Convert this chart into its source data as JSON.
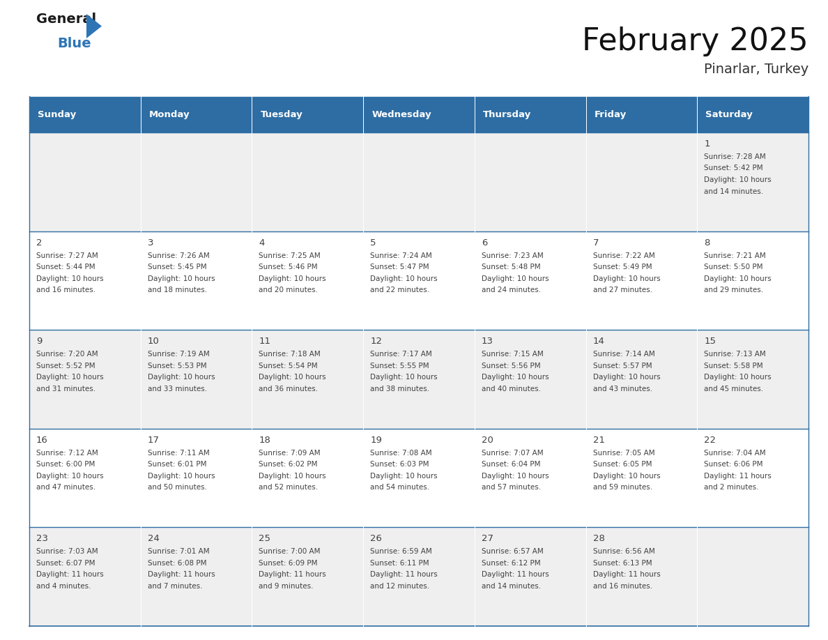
{
  "title": "February 2025",
  "subtitle": "Pinarlar, Turkey",
  "header_bg": "#2E6DA4",
  "header_text_color": "#FFFFFF",
  "cell_bg_light": "#EFEFEF",
  "cell_bg_white": "#FFFFFF",
  "border_color": "#2E6DA4",
  "text_color": "#404040",
  "day_headers": [
    "Sunday",
    "Monday",
    "Tuesday",
    "Wednesday",
    "Thursday",
    "Friday",
    "Saturday"
  ],
  "logo_dark_color": "#1a1a1a",
  "logo_blue_color": "#2E75B6",
  "calendar_data": [
    [
      null,
      null,
      null,
      null,
      null,
      null,
      {
        "day": "1",
        "sunrise": "7:28 AM",
        "sunset": "5:42 PM",
        "daylight_line1": "10 hours",
        "daylight_line2": "and 14 minutes."
      }
    ],
    [
      {
        "day": "2",
        "sunrise": "7:27 AM",
        "sunset": "5:44 PM",
        "daylight_line1": "10 hours",
        "daylight_line2": "and 16 minutes."
      },
      {
        "day": "3",
        "sunrise": "7:26 AM",
        "sunset": "5:45 PM",
        "daylight_line1": "10 hours",
        "daylight_line2": "and 18 minutes."
      },
      {
        "day": "4",
        "sunrise": "7:25 AM",
        "sunset": "5:46 PM",
        "daylight_line1": "10 hours",
        "daylight_line2": "and 20 minutes."
      },
      {
        "day": "5",
        "sunrise": "7:24 AM",
        "sunset": "5:47 PM",
        "daylight_line1": "10 hours",
        "daylight_line2": "and 22 minutes."
      },
      {
        "day": "6",
        "sunrise": "7:23 AM",
        "sunset": "5:48 PM",
        "daylight_line1": "10 hours",
        "daylight_line2": "and 24 minutes."
      },
      {
        "day": "7",
        "sunrise": "7:22 AM",
        "sunset": "5:49 PM",
        "daylight_line1": "10 hours",
        "daylight_line2": "and 27 minutes."
      },
      {
        "day": "8",
        "sunrise": "7:21 AM",
        "sunset": "5:50 PM",
        "daylight_line1": "10 hours",
        "daylight_line2": "and 29 minutes."
      }
    ],
    [
      {
        "day": "9",
        "sunrise": "7:20 AM",
        "sunset": "5:52 PM",
        "daylight_line1": "10 hours",
        "daylight_line2": "and 31 minutes."
      },
      {
        "day": "10",
        "sunrise": "7:19 AM",
        "sunset": "5:53 PM",
        "daylight_line1": "10 hours",
        "daylight_line2": "and 33 minutes."
      },
      {
        "day": "11",
        "sunrise": "7:18 AM",
        "sunset": "5:54 PM",
        "daylight_line1": "10 hours",
        "daylight_line2": "and 36 minutes."
      },
      {
        "day": "12",
        "sunrise": "7:17 AM",
        "sunset": "5:55 PM",
        "daylight_line1": "10 hours",
        "daylight_line2": "and 38 minutes."
      },
      {
        "day": "13",
        "sunrise": "7:15 AM",
        "sunset": "5:56 PM",
        "daylight_line1": "10 hours",
        "daylight_line2": "and 40 minutes."
      },
      {
        "day": "14",
        "sunrise": "7:14 AM",
        "sunset": "5:57 PM",
        "daylight_line1": "10 hours",
        "daylight_line2": "and 43 minutes."
      },
      {
        "day": "15",
        "sunrise": "7:13 AM",
        "sunset": "5:58 PM",
        "daylight_line1": "10 hours",
        "daylight_line2": "and 45 minutes."
      }
    ],
    [
      {
        "day": "16",
        "sunrise": "7:12 AM",
        "sunset": "6:00 PM",
        "daylight_line1": "10 hours",
        "daylight_line2": "and 47 minutes."
      },
      {
        "day": "17",
        "sunrise": "7:11 AM",
        "sunset": "6:01 PM",
        "daylight_line1": "10 hours",
        "daylight_line2": "and 50 minutes."
      },
      {
        "day": "18",
        "sunrise": "7:09 AM",
        "sunset": "6:02 PM",
        "daylight_line1": "10 hours",
        "daylight_line2": "and 52 minutes."
      },
      {
        "day": "19",
        "sunrise": "7:08 AM",
        "sunset": "6:03 PM",
        "daylight_line1": "10 hours",
        "daylight_line2": "and 54 minutes."
      },
      {
        "day": "20",
        "sunrise": "7:07 AM",
        "sunset": "6:04 PM",
        "daylight_line1": "10 hours",
        "daylight_line2": "and 57 minutes."
      },
      {
        "day": "21",
        "sunrise": "7:05 AM",
        "sunset": "6:05 PM",
        "daylight_line1": "10 hours",
        "daylight_line2": "and 59 minutes."
      },
      {
        "day": "22",
        "sunrise": "7:04 AM",
        "sunset": "6:06 PM",
        "daylight_line1": "11 hours",
        "daylight_line2": "and 2 minutes."
      }
    ],
    [
      {
        "day": "23",
        "sunrise": "7:03 AM",
        "sunset": "6:07 PM",
        "daylight_line1": "11 hours",
        "daylight_line2": "and 4 minutes."
      },
      {
        "day": "24",
        "sunrise": "7:01 AM",
        "sunset": "6:08 PM",
        "daylight_line1": "11 hours",
        "daylight_line2": "and 7 minutes."
      },
      {
        "day": "25",
        "sunrise": "7:00 AM",
        "sunset": "6:09 PM",
        "daylight_line1": "11 hours",
        "daylight_line2": "and 9 minutes."
      },
      {
        "day": "26",
        "sunrise": "6:59 AM",
        "sunset": "6:11 PM",
        "daylight_line1": "11 hours",
        "daylight_line2": "and 12 minutes."
      },
      {
        "day": "27",
        "sunrise": "6:57 AM",
        "sunset": "6:12 PM",
        "daylight_line1": "11 hours",
        "daylight_line2": "and 14 minutes."
      },
      {
        "day": "28",
        "sunrise": "6:56 AM",
        "sunset": "6:13 PM",
        "daylight_line1": "11 hours",
        "daylight_line2": "and 16 minutes."
      },
      null
    ]
  ],
  "row_bg_colors": [
    "#EFEFEF",
    "#FFFFFF",
    "#EFEFEF",
    "#FFFFFF",
    "#EFEFEF"
  ]
}
